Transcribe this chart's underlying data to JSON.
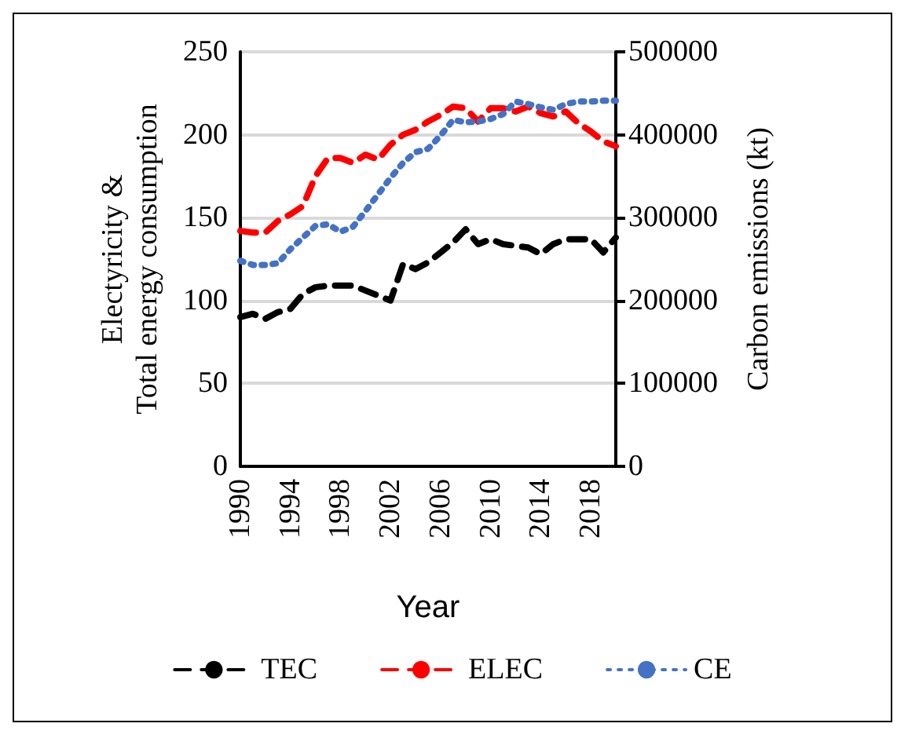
{
  "chart_data": {
    "type": "line",
    "xlabel": "Year",
    "ylabel": "Electyricity &\nTotal energy consumption",
    "y2label": "Carbon emissions (kt)",
    "categories": [
      "1990",
      null,
      null,
      null,
      "1994",
      null,
      null,
      null,
      "1998",
      null,
      null,
      null,
      "2002",
      null,
      null,
      null,
      "2006",
      null,
      null,
      null,
      "2010",
      null,
      null,
      null,
      "2014",
      null,
      null,
      null,
      "2018",
      null,
      null
    ],
    "series": [
      {
        "name": "TEC",
        "color": "#000000",
        "line_style": "dashed",
        "values": [
          90,
          92,
          89,
          93,
          95,
          104,
          108,
          109,
          109,
          109,
          106,
          103,
          100,
          122,
          119,
          123,
          129,
          135,
          143,
          134,
          137,
          134,
          133,
          132,
          128,
          134,
          137,
          137,
          137,
          129,
          138
        ]
      },
      {
        "name": "ELEC",
        "color": "#ff0000",
        "line_style": "dashed",
        "values": [
          142,
          141,
          141,
          148,
          152,
          157,
          175,
          186,
          186,
          183,
          188,
          185,
          194,
          200,
          203,
          208,
          212,
          217,
          216,
          208,
          216,
          216,
          214,
          217,
          213,
          211,
          214,
          207,
          202,
          196,
          193
        ]
      },
      {
        "name": "CE",
        "color": "#4472c4",
        "line_style": "dotted",
        "axis": "y2",
        "values": [
          248000,
          243000,
          243000,
          245000,
          262000,
          276000,
          290000,
          292000,
          283000,
          289000,
          308000,
          328000,
          348000,
          366000,
          379000,
          383000,
          399000,
          418000,
          415000,
          416000,
          419000,
          425000,
          440000,
          437000,
          433000,
          430000,
          437000,
          440000,
          440000,
          441000,
          441000
        ]
      }
    ],
    "ylim": [
      0,
      250
    ],
    "yticks": [
      0,
      50,
      100,
      150,
      200,
      250
    ],
    "y2lim": [
      0,
      500000
    ],
    "y2ticks": [
      0,
      100000,
      200000,
      300000,
      400000,
      500000
    ],
    "grid": "y",
    "legend": "bottom",
    "marker": "none"
  }
}
